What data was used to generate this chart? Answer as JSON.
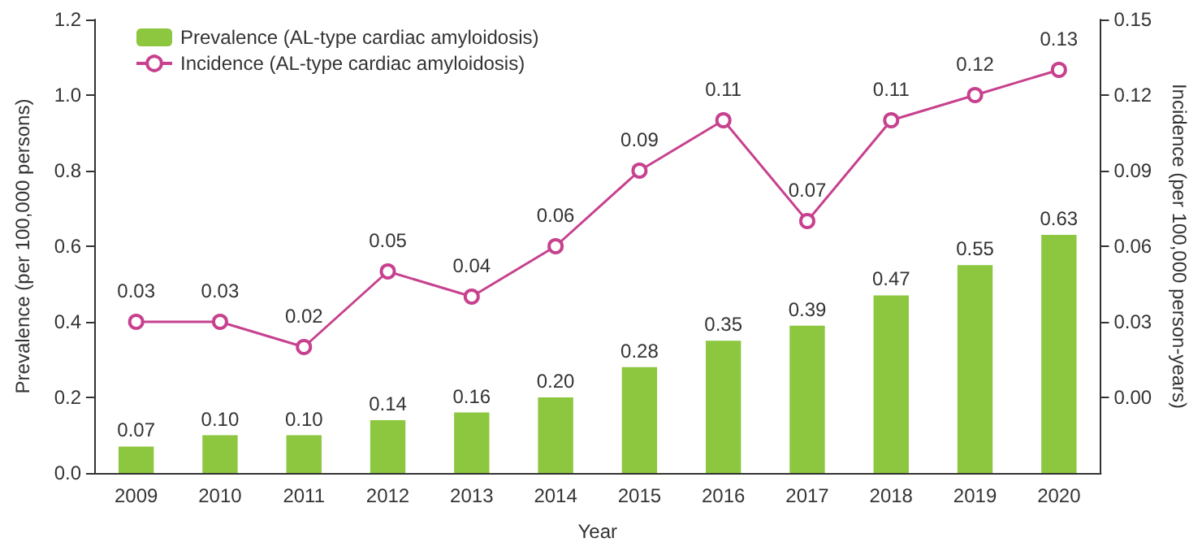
{
  "chart_data": {
    "type": "bar",
    "xlabel": "Year",
    "ylabel": "Prevalence (per 100,000 persons)",
    "y2label": "Incidence (per 100,000 person-years)",
    "categories": [
      "2009",
      "2010",
      "2011",
      "2012",
      "2013",
      "2014",
      "2015",
      "2016",
      "2017",
      "2018",
      "2019",
      "2020"
    ],
    "series": [
      {
        "name": "Prevalence (AL-type cardiac amyloidosis)",
        "color": "#8dc63f",
        "values": [
          0.07,
          0.1,
          0.1,
          0.14,
          0.16,
          0.2,
          0.28,
          0.35,
          0.39,
          0.47,
          0.55,
          0.63
        ],
        "value_labels": [
          "0.07",
          "0.10",
          "0.10",
          "0.14",
          "0.16",
          "0.20",
          "0.28",
          "0.35",
          "0.39",
          "0.47",
          "0.55",
          "0.63"
        ]
      },
      {
        "name": "Incidence (AL-type cardiac amyloidosis)",
        "type": "line",
        "axis": "y2",
        "color": "#c7418e",
        "marker": "circle",
        "values": [
          0.03,
          0.03,
          0.02,
          0.05,
          0.04,
          0.06,
          0.09,
          0.11,
          0.07,
          0.11,
          0.12,
          0.13
        ],
        "value_labels": [
          "0.03",
          "0.03",
          "0.02",
          "0.05",
          "0.04",
          "0.06",
          "0.09",
          "0.11",
          "0.07",
          "0.11",
          "0.12",
          "0.13"
        ]
      }
    ],
    "ylim": [
      0,
      1.2
    ],
    "yticks": [
      {
        "value": 0,
        "label": "0.0"
      },
      {
        "value": 0.2,
        "label": "0.2"
      },
      {
        "value": 0.4,
        "label": "0.4"
      },
      {
        "value": 0.6,
        "label": "0.6"
      },
      {
        "value": 0.8,
        "label": "0.8"
      },
      {
        "value": 1.0,
        "label": "1.0"
      },
      {
        "value": 1.2,
        "label": "1.2"
      }
    ],
    "y2lim": [
      -0.03,
      0.15
    ],
    "y2ticks": [
      {
        "value": 0,
        "label": "0.00"
      },
      {
        "value": 0.03,
        "label": "0.03"
      },
      {
        "value": 0.06,
        "label": "0.06"
      },
      {
        "value": 0.09,
        "label": "0.09"
      },
      {
        "value": 0.12,
        "label": "0.12"
      },
      {
        "value": 0.15,
        "label": "0.15"
      }
    ],
    "legend": "top left",
    "grid": false
  }
}
